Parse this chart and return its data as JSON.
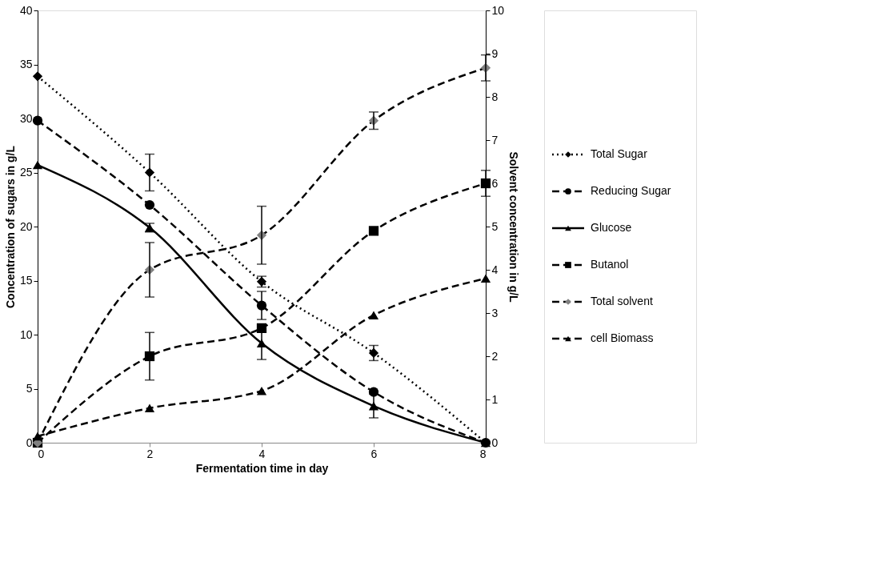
{
  "chart_data": {
    "type": "line",
    "xlabel": "Fermentation time in day",
    "ylabel": "Concentration of sugars in g/L",
    "y2label": "Solvent concentration in g/L",
    "x": [
      0,
      2,
      4,
      6,
      8
    ],
    "xlim": [
      0,
      8
    ],
    "xticks": [
      0,
      2,
      4,
      6,
      8
    ],
    "ylim": [
      0,
      40
    ],
    "yticks": [
      0,
      5,
      10,
      15,
      20,
      25,
      30,
      35,
      40
    ],
    "y2lim": [
      0,
      10
    ],
    "y2ticks": [
      0,
      1,
      2,
      3,
      4,
      5,
      6,
      7,
      8,
      9,
      10
    ],
    "grid": false,
    "legend": "right",
    "series": [
      {
        "name": "Total Sugar",
        "color": "#000000",
        "marker": "diamond",
        "line_style": "dotted",
        "values": [
          33.9,
          25,
          14.9,
          8.3,
          0
        ],
        "errors": [
          null,
          1.7,
          0.5,
          0.7,
          null
        ]
      },
      {
        "name": "Reducing Sugar",
        "color": "#000000",
        "marker": "circle",
        "line_style": "dashed",
        "values": [
          29.8,
          22,
          12.7,
          4.7,
          0
        ],
        "errors": [
          null,
          null,
          1.3,
          null,
          null
        ]
      },
      {
        "name": "Glucose",
        "color": "#000000",
        "marker": "triangle",
        "line_style": "solid",
        "values": [
          25.7,
          19.9,
          9.2,
          3.4,
          0
        ],
        "errors": [
          null,
          0.4,
          1.5,
          1.1,
          null
        ]
      },
      {
        "name": "Butanol",
        "color": "#000000",
        "marker": "square",
        "line_style": "dashed",
        "axis": "y2",
        "values": [
          0,
          2.0,
          2.65,
          4.9,
          6.0
        ],
        "errors": [
          null,
          0.55,
          null,
          null,
          0.3
        ]
      },
      {
        "name": "Total solvent",
        "color": "#808080",
        "marker": "diamond",
        "line_style": "dashed",
        "axis": "y2",
        "values": [
          0,
          4.0,
          4.8,
          7.45,
          8.67
        ],
        "errors": [
          null,
          0.63,
          0.67,
          0.2,
          0.3
        ]
      },
      {
        "name": "cell Biomass",
        "color": "#000000",
        "marker": "triangle",
        "line_style": "dashed",
        "axis": "y2",
        "values": [
          0.15,
          0.8,
          1.2,
          2.95,
          3.8
        ]
      }
    ]
  }
}
